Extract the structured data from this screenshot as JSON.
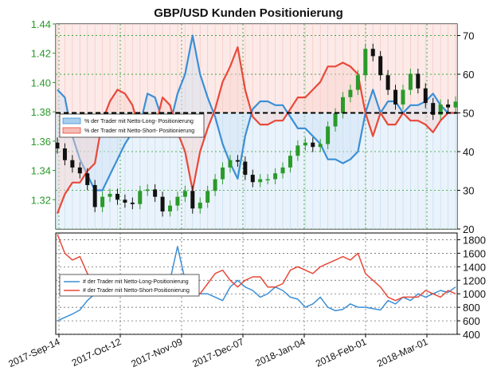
{
  "chart_data": [
    {
      "type": "candlestick+line",
      "title": "GBP/USD Kunden Positionierung",
      "left_axis": {
        "ticks": [
          1.32,
          1.34,
          1.36,
          1.38,
          1.4,
          1.42,
          1.44
        ],
        "ylim": [
          1.3,
          1.44
        ],
        "color": "#2a9a2a"
      },
      "right_axis": {
        "ticks": [
          20,
          30,
          40,
          50,
          60,
          70
        ],
        "ylim": [
          20,
          73
        ]
      },
      "x_tick_labels": [
        "2017-Sep-14",
        "2017-Oct-12",
        "2017-Nov-09",
        "2017-Dec-07",
        "2018-Jan-04",
        "2018-Feb-01",
        "2018-Mar-01"
      ],
      "reference_line": {
        "value": 50,
        "style": "dashed",
        "color": "#000000"
      },
      "legend": {
        "placement": "left",
        "entries": [
          {
            "label": "% der Trader mit Netto-Long- Positionierung",
            "color": "#3b8fd6"
          },
          {
            "label": "% der Trader mit Netto-Short- Positionierung",
            "color": "#e8493a"
          }
        ]
      },
      "series": [
        {
          "name": "% der Trader mit Netto-Long- Positionierung",
          "color": "#3b8fd6",
          "values": [
            56,
            54,
            44,
            38,
            34,
            30,
            30,
            34,
            38,
            42,
            45,
            47,
            55,
            54,
            48,
            47,
            55,
            60,
            70,
            60,
            54,
            49,
            42,
            37,
            33,
            44,
            51,
            53,
            53,
            52,
            52,
            49,
            46,
            46,
            44,
            42,
            38,
            38,
            37,
            38,
            40,
            50,
            56,
            50,
            53,
            53,
            50,
            52,
            52,
            53,
            55,
            52,
            50,
            50
          ]
        },
        {
          "name": "% der Trader mit Netto-Short- Positionierung",
          "color": "#e8493a",
          "values": [
            24,
            29,
            32,
            32,
            35,
            37,
            48,
            53,
            56,
            55,
            52,
            45,
            45,
            46,
            54,
            52,
            45,
            40,
            30,
            40,
            46,
            51,
            58,
            62,
            67,
            56,
            49,
            47,
            47,
            48,
            48,
            51,
            54,
            54,
            56,
            58,
            62,
            62,
            63,
            62,
            60,
            50,
            44,
            50,
            47,
            47,
            50,
            48,
            48,
            47,
            45,
            48,
            50,
            50
          ]
        }
      ],
      "price_close": [
        1.355,
        1.347,
        1.342,
        1.338,
        1.33,
        1.315,
        1.322,
        1.324,
        1.32,
        1.318,
        1.317,
        1.326,
        1.327,
        1.322,
        1.312,
        1.316,
        1.322,
        1.326,
        1.314,
        1.318,
        1.326,
        1.334,
        1.342,
        1.347,
        1.346,
        1.337,
        1.332,
        1.334,
        1.334,
        1.338,
        1.342,
        1.35,
        1.357,
        1.359,
        1.356,
        1.358,
        1.37,
        1.379,
        1.39,
        1.395,
        1.405,
        1.423,
        1.418,
        1.405,
        1.395,
        1.385,
        1.395,
        1.406,
        1.396,
        1.386,
        1.378,
        1.385,
        1.383,
        1.387
      ]
    },
    {
      "type": "line",
      "right_axis": {
        "ticks": [
          400,
          600,
          800,
          1000,
          1200,
          1400,
          1600,
          1800
        ],
        "ylim": [
          400,
          1900
        ]
      },
      "legend": {
        "placement": "left",
        "entries": [
          {
            "label": "# der Trader mit Netto-Long-Positionierung",
            "color": "#3b8fd6"
          },
          {
            "label": "# der Trader mit Netto-Short-Positionierung",
            "color": "#e8493a"
          }
        ]
      },
      "series": [
        {
          "name": "# der Trader mit Netto-Long-Positionierung",
          "color": "#3b8fd6",
          "values": [
            600,
            650,
            700,
            760,
            900,
            1000,
            1050,
            1020,
            990,
            1000,
            1050,
            1100,
            1020,
            1000,
            1050,
            1200,
            1700,
            1200,
            1050,
            1000,
            1000,
            950,
            900,
            1100,
            1200,
            1100,
            1050,
            950,
            1000,
            1100,
            1050,
            950,
            920,
            800,
            850,
            950,
            800,
            750,
            770,
            850,
            800,
            800,
            780,
            760,
            900,
            850,
            950,
            900,
            1000,
            950,
            1000,
            1050,
            1020,
            1100
          ]
        },
        {
          "name": "# der Trader mit Netto-Short-Positionierung",
          "color": "#e8493a",
          "values": [
            1880,
            1600,
            1500,
            1550,
            1300,
            1150,
            1050,
            1020,
            1050,
            1000,
            1050,
            1100,
            1050,
            1000,
            1050,
            1000,
            1050,
            980,
            990,
            1000,
            1150,
            1300,
            1350,
            1200,
            1100,
            1200,
            1250,
            1250,
            1100,
            1100,
            1150,
            1350,
            1400,
            1350,
            1300,
            1400,
            1450,
            1500,
            1550,
            1500,
            1600,
            1300,
            1200,
            1100,
            950,
            900,
            950,
            950,
            950,
            1050,
            1000,
            950,
            1050,
            1000
          ]
        }
      ]
    }
  ]
}
